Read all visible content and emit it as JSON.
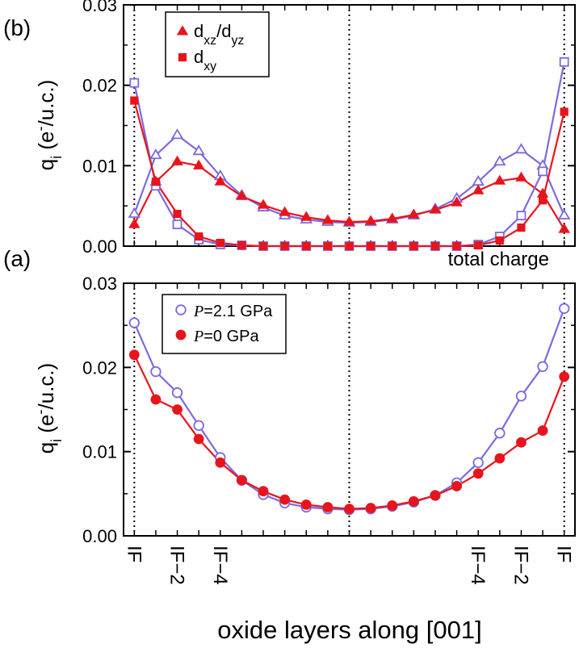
{
  "colors": {
    "red": "#e8141c",
    "purple": "#7b6ae0",
    "black": "#000000"
  },
  "xlabel": "oxide layers along [001]",
  "x_tick_labels": [
    "IF",
    "IF−2",
    "IF−4",
    "IF−4",
    "IF−2",
    "IF"
  ],
  "chart_data": [
    {
      "panel": "(b)",
      "type": "line",
      "ylabel": "q_i (e^-/u.c.)",
      "ylim": [
        0,
        0.03
      ],
      "yticks": [
        "0.00",
        "0.01",
        "0.02",
        "0.03"
      ],
      "x": [
        0,
        1,
        2,
        3,
        4,
        5,
        6,
        7,
        8,
        9,
        10,
        11,
        12,
        13,
        14,
        15,
        16,
        17,
        18,
        19,
        20
      ],
      "legend_position": "top-left",
      "legend": [
        {
          "label": "d_xz/d_yz",
          "marker": "triangle"
        },
        {
          "label": "d_xy",
          "marker": "square"
        }
      ],
      "series": [
        {
          "orbital": "dxz/dyz",
          "pressure": "2.1 GPa",
          "marker": "open-triangle",
          "color": "#7b6ae0",
          "values": [
            0.004,
            0.0113,
            0.0138,
            0.0118,
            0.0087,
            0.0063,
            0.0048,
            0.0038,
            0.0033,
            0.003,
            0.0029,
            0.003,
            0.0033,
            0.0038,
            0.0046,
            0.0059,
            0.008,
            0.0105,
            0.012,
            0.01,
            0.0038
          ]
        },
        {
          "orbital": "dxz/dyz",
          "pressure": "0 GPa",
          "marker": "filled-triangle",
          "color": "#e8141c",
          "values": [
            0.0027,
            0.008,
            0.0105,
            0.01,
            0.008,
            0.0062,
            0.0051,
            0.0042,
            0.0036,
            0.0032,
            0.003,
            0.0031,
            0.0034,
            0.0039,
            0.0045,
            0.0054,
            0.0069,
            0.0081,
            0.0085,
            0.0065,
            0.0021
          ]
        },
        {
          "orbital": "dxy",
          "pressure": "2.1 GPa",
          "marker": "open-square",
          "color": "#7b6ae0",
          "values": [
            0.0203,
            0.0075,
            0.0027,
            0.0008,
            0.0002,
            0.0001,
            0.0,
            0.0,
            0.0,
            0.0,
            0.0,
            0.0,
            0.0,
            0.0,
            0.0,
            0.0,
            0.0002,
            0.0012,
            0.0038,
            0.0093,
            0.0229
          ]
        },
        {
          "orbital": "dxy",
          "pressure": "0 GPa",
          "marker": "filled-square",
          "color": "#e8141c",
          "values": [
            0.0181,
            0.008,
            0.004,
            0.0012,
            0.0004,
            0.0001,
            0.0,
            0.0,
            0.0,
            0.0,
            0.0,
            0.0,
            0.0,
            0.0,
            0.0,
            0.0,
            0.0001,
            0.0007,
            0.0023,
            0.0057,
            0.0167
          ]
        }
      ]
    },
    {
      "panel": "(a)",
      "type": "line",
      "ylabel": "q_i (e^-/u.c.)",
      "ylim": [
        0,
        0.03
      ],
      "yticks": [
        "0.00",
        "0.01",
        "0.02",
        "0.03"
      ],
      "x": [
        0,
        1,
        2,
        3,
        4,
        5,
        6,
        7,
        8,
        9,
        10,
        11,
        12,
        13,
        14,
        15,
        16,
        17,
        18,
        19,
        20
      ],
      "annotation": "total charge",
      "legend_position": "top-left",
      "legend": [
        {
          "label": "P=2.1 GPa",
          "italic": "P",
          "rest": "=2.1 GPa",
          "marker": "open-circle"
        },
        {
          "label": "P=0 GPa",
          "italic": "P",
          "rest": "=0 GPa",
          "marker": "filled-circle"
        }
      ],
      "series": [
        {
          "name": "P=2.1 GPa",
          "marker": "open-circle",
          "color": "#7b6ae0",
          "values": [
            0.0253,
            0.0195,
            0.017,
            0.0131,
            0.0093,
            0.0066,
            0.0049,
            0.0039,
            0.0034,
            0.0032,
            0.0031,
            0.0032,
            0.0035,
            0.004,
            0.0048,
            0.0063,
            0.0087,
            0.0122,
            0.0166,
            0.0201,
            0.027
          ]
        },
        {
          "name": "P=0 GPa",
          "marker": "filled-circle",
          "color": "#e8141c",
          "values": [
            0.0215,
            0.0162,
            0.015,
            0.0115,
            0.0087,
            0.0066,
            0.0053,
            0.0043,
            0.0037,
            0.0034,
            0.0032,
            0.0033,
            0.0036,
            0.0041,
            0.0048,
            0.0059,
            0.0074,
            0.0092,
            0.0111,
            0.0125,
            0.0189
          ]
        }
      ]
    }
  ]
}
